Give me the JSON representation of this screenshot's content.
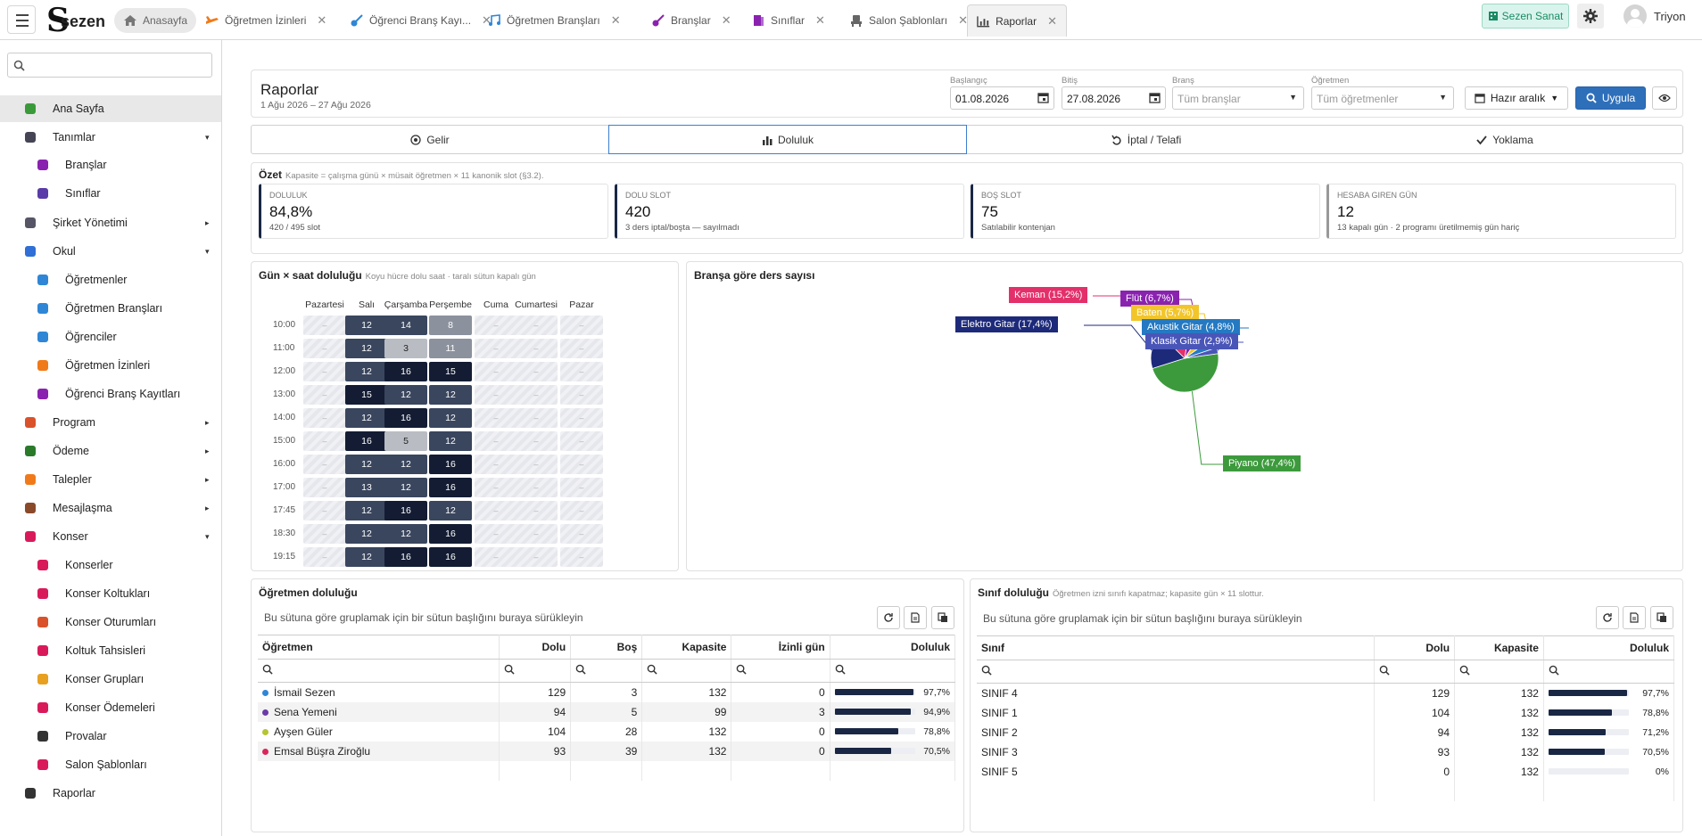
{
  "app": {
    "brand": "sezen",
    "user": "Triyon",
    "company_button": "Sezen Sanat"
  },
  "tabs": [
    {
      "label": "Anasayfa"
    },
    {
      "label": "Öğretmen İzinleri"
    },
    {
      "label": "Öğrenci Branş Kayı..."
    },
    {
      "label": "Öğretmen Branşları"
    },
    {
      "label": "Branşlar"
    },
    {
      "label": "Sınıflar"
    },
    {
      "label": "Salon Şablonları"
    },
    {
      "label": "Raporlar"
    }
  ],
  "sidebar": {
    "items": [
      {
        "label": "Ana Sayfa",
        "icon": "home-icon"
      },
      {
        "label": "Tanımlar",
        "icon": "layers-icon"
      },
      {
        "label": "Branşlar",
        "icon": "guitar-icon"
      },
      {
        "label": "Sınıflar",
        "icon": "door-icon"
      },
      {
        "label": "Şirket Yönetimi",
        "icon": "building-icon"
      },
      {
        "label": "Okul",
        "icon": "school-icon"
      },
      {
        "label": "Öğretmenler",
        "icon": "teacher-icon"
      },
      {
        "label": "Öğretmen Branşları",
        "icon": "music-icon"
      },
      {
        "label": "Öğrenciler",
        "icon": "student-icon"
      },
      {
        "label": "Öğretmen İzinleri",
        "icon": "plane-icon"
      },
      {
        "label": "Öğrenci Branş Kayıtları",
        "icon": "guitar-icon"
      },
      {
        "label": "Program",
        "icon": "calendar-icon"
      },
      {
        "label": "Ödeme",
        "icon": "wallet-icon"
      },
      {
        "label": "Talepler",
        "icon": "inbox-icon"
      },
      {
        "label": "Mesajlaşma",
        "icon": "chat-icon"
      },
      {
        "label": "Konser",
        "icon": "theater-icon"
      },
      {
        "label": "Konserler",
        "icon": "theater-icon"
      },
      {
        "label": "Konser Koltukları",
        "icon": "seat-icon"
      },
      {
        "label": "Konser Oturumları",
        "icon": "calendar-icon"
      },
      {
        "label": "Koltuk Tahsisleri",
        "icon": "ticket-icon"
      },
      {
        "label": "Konser Grupları",
        "icon": "group-icon"
      },
      {
        "label": "Konser Ödemeleri",
        "icon": "receipt-icon"
      },
      {
        "label": "Provalar",
        "icon": "piano-icon"
      },
      {
        "label": "Salon Şablonları",
        "icon": "seat-icon"
      },
      {
        "label": "Raporlar",
        "icon": "chart-icon"
      }
    ]
  },
  "report": {
    "title": "Raporlar",
    "date_range": "1 Ağu 2026 – 27 Ağu 2026",
    "filters": {
      "start_label": "Başlangıç",
      "start_value": "01.08.2026",
      "end_label": "Bitiş",
      "end_value": "27.08.2026",
      "branch_label": "Branş",
      "branch_placeholder": "Tüm branşlar",
      "teacher_label": "Öğretmen",
      "teacher_placeholder": "Tüm öğretmenler",
      "preset_label": "Hazır aralık",
      "apply_label": "Uygula"
    },
    "tabs": [
      "Gelir",
      "Doluluk",
      "İptal / Telafi",
      "Yoklama"
    ],
    "summary": {
      "title": "Özet",
      "note": "Kapasite = çalışma günü × müsait öğretmen × 11 kanonik slot (§3.2).",
      "kpis": [
        {
          "label": "Doluluk",
          "value": "84,8%",
          "sub": "420 / 495 slot"
        },
        {
          "label": "Dolu slot",
          "value": "420",
          "sub": "3 ders iptal/boşta — sayılmadı"
        },
        {
          "label": "Boş slot",
          "value": "75",
          "sub": "Satılabilir kontenjan"
        },
        {
          "label": "Hesaba giren gün",
          "value": "12",
          "sub": "13 kapalı gün · 2 programı üretilmemiş gün hariç"
        }
      ]
    },
    "heatmap": {
      "title": "Gün × saat doluluğu",
      "note": "Koyu hücre dolu saat · taralı sütun kapalı gün",
      "days": [
        "Pazartesi",
        "Salı",
        "Çarşamba",
        "Perşembe",
        "Cuma",
        "Cumartesi",
        "Pazar"
      ],
      "hours": [
        "10:00",
        "11:00",
        "12:00",
        "13:00",
        "14:00",
        "15:00",
        "16:00",
        "17:00",
        "17:45",
        "18:30",
        "19:15"
      ],
      "empty_symbol": "–",
      "values": [
        [
          12,
          14,
          8
        ],
        [
          12,
          3,
          11
        ],
        [
          12,
          16,
          15
        ],
        [
          15,
          12,
          12
        ],
        [
          12,
          16,
          12
        ],
        [
          16,
          5,
          12
        ],
        [
          12,
          12,
          16
        ],
        [
          13,
          12,
          16
        ],
        [
          12,
          16,
          12
        ],
        [
          12,
          12,
          16
        ],
        [
          12,
          16,
          16
        ]
      ]
    },
    "pie": {
      "title": "Branşa göre ders sayısı"
    },
    "teacher_grid": {
      "title": "Öğretmen doluluğu",
      "group_hint": "Bu sütuna göre gruplamak için bir sütun başlığını buraya sürükleyin",
      "columns": [
        "Öğretmen",
        "Dolu",
        "Boş",
        "Kapasite",
        "İzinli gün",
        "Doluluk"
      ],
      "rows": [
        {
          "name": "İsmail Sezen",
          "color": "#2f86d6",
          "dolu": "129",
          "bos": "3",
          "kap": "132",
          "izin": "0",
          "pct": "97,7%",
          "frac": 0.977
        },
        {
          "name": "Sena Yemeni",
          "color": "#6a3aa8",
          "dolu": "94",
          "bos": "5",
          "kap": "99",
          "izin": "3",
          "pct": "94,9%",
          "frac": 0.949
        },
        {
          "name": "Ayşen Güler",
          "color": "#b5c430",
          "dolu": "104",
          "bos": "28",
          "kap": "132",
          "izin": "0",
          "pct": "78,8%",
          "frac": 0.788
        },
        {
          "name": "Emsal Büşra Ziroğlu",
          "color": "#d9265a",
          "dolu": "93",
          "bos": "39",
          "kap": "132",
          "izin": "0",
          "pct": "70,5%",
          "frac": 0.705
        }
      ]
    },
    "class_grid": {
      "title": "Sınıf doluluğu",
      "note": "Öğretmen izni sınıfı kapatmaz; kapasite gün × 11 slottur.",
      "group_hint": "Bu sütuna göre gruplamak için bir sütun başlığını buraya sürükleyin",
      "columns": [
        "Sınıf",
        "Dolu",
        "Kapasite",
        "Doluluk"
      ],
      "rows": [
        {
          "name": "SINIF 4",
          "dolu": "129",
          "kap": "132",
          "pct": "97,7%",
          "frac": 0.977
        },
        {
          "name": "SINIF 1",
          "dolu": "104",
          "kap": "132",
          "pct": "78,8%",
          "frac": 0.788
        },
        {
          "name": "SINIF 2",
          "dolu": "94",
          "kap": "132",
          "pct": "71,2%",
          "frac": 0.712
        },
        {
          "name": "SINIF 3",
          "dolu": "93",
          "kap": "132",
          "pct": "70,5%",
          "frac": 0.705
        },
        {
          "name": "SINIF 5",
          "dolu": "0",
          "kap": "132",
          "pct": "0%",
          "frac": 0
        }
      ]
    }
  },
  "chart_data": {
    "type": "pie",
    "title": "Branşa göre ders sayısı",
    "slices": [
      {
        "label": "Piyano (47,4%)",
        "value": 47.4,
        "color": "#3c9a3c"
      },
      {
        "label": "Elektro Gitar (17,4%)",
        "value": 17.4,
        "color": "#1d2a7a"
      },
      {
        "label": "Keman (15,2%)",
        "value": 15.2,
        "color": "#e3306b"
      },
      {
        "label": "Flüt (6,7%)",
        "value": 6.7,
        "color": "#8a22b0"
      },
      {
        "label": "Baten (5,7%)",
        "value": 5.7,
        "color": "#f2c52b"
      },
      {
        "label": "Akustik Gitar (4,8%)",
        "value": 4.8,
        "color": "#2479c2"
      },
      {
        "label": "Klasik Gitar (2,9%)",
        "value": 2.9,
        "color": "#4a55b8"
      }
    ]
  }
}
